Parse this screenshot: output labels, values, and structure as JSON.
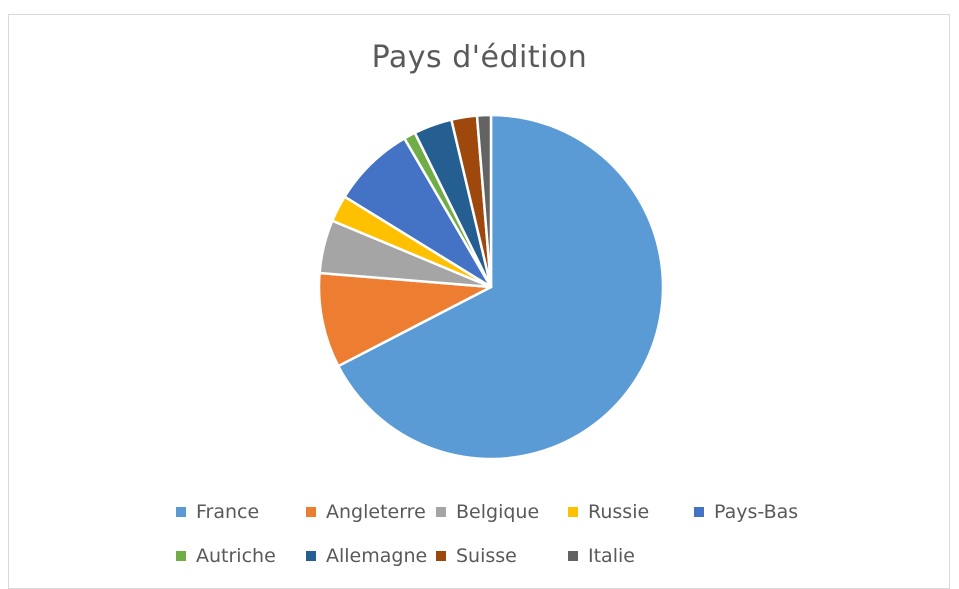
{
  "chart_data": {
    "type": "pie",
    "title": "Pays d'édition",
    "start_angle_deg": 0,
    "direction": "clockwise",
    "legend_position": "bottom",
    "slices": [
      {
        "name": "France",
        "value": 67.4,
        "color": "#5b9bd5"
      },
      {
        "name": "Angleterre",
        "value": 8.9,
        "color": "#ed7d31"
      },
      {
        "name": "Belgique",
        "value": 5.0,
        "color": "#a5a5a5"
      },
      {
        "name": "Russie",
        "value": 2.5,
        "color": "#ffc000"
      },
      {
        "name": "Pays-Bas",
        "value": 7.8,
        "color": "#4472c4"
      },
      {
        "name": "Autriche",
        "value": 1.1,
        "color": "#70ad47"
      },
      {
        "name": "Allemagne",
        "value": 3.6,
        "color": "#255e91"
      },
      {
        "name": "Suisse",
        "value": 2.4,
        "color": "#9e480e"
      },
      {
        "name": "Italie",
        "value": 1.3,
        "color": "#636363"
      }
    ]
  }
}
